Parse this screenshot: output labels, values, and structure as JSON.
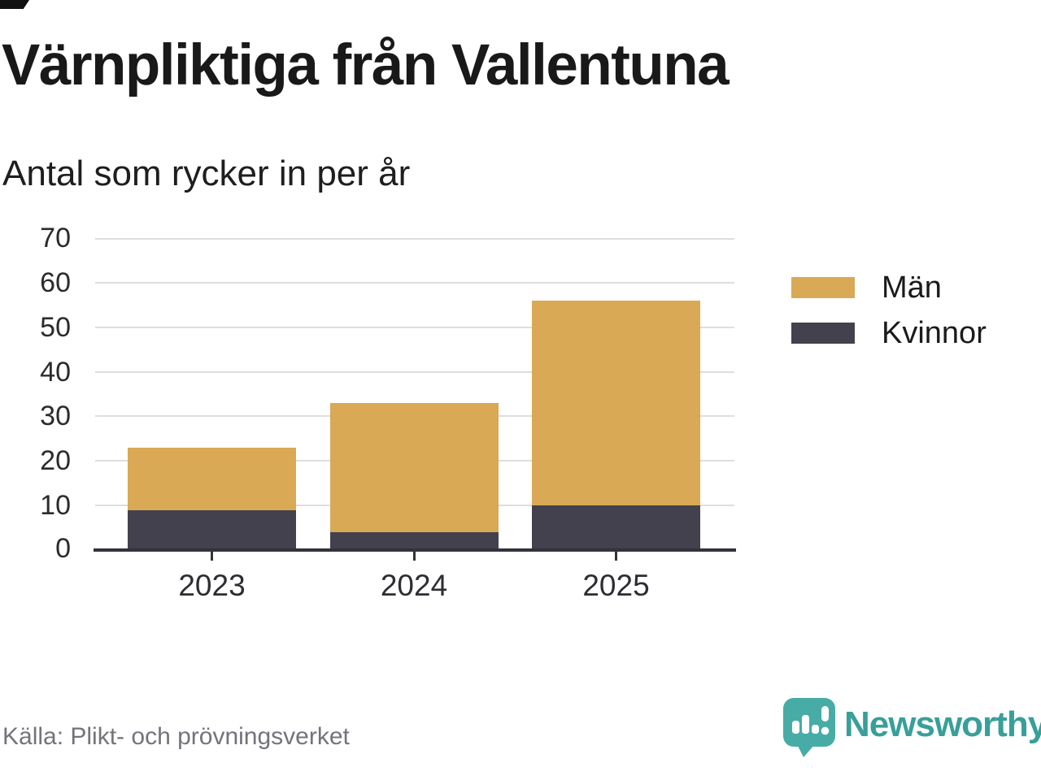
{
  "title": "Värnpliktiga från Vallentuna",
  "subtitle": "Antal som rycker in per år",
  "source": "Källa: Plikt- och prövningsverket",
  "branding": {
    "name": "Newsworthy",
    "wordmark_color": "#389f99",
    "icon_color": "#47aca6"
  },
  "legend": [
    {
      "label": "Män",
      "color": "#d9a955"
    },
    {
      "label": "Kvinnor",
      "color": "#44414e"
    }
  ],
  "colors": {
    "men": "#d9a955",
    "women": "#44414e",
    "gridline": "#dedede",
    "axis": "#35323c",
    "text": "#191919",
    "muted_text": "#74737b"
  },
  "chart_data": {
    "type": "bar",
    "stacked": true,
    "title": "Värnpliktiga från Vallentuna",
    "subtitle": "Antal som rycker in per år",
    "categories": [
      "2023",
      "2024",
      "2025"
    ],
    "series": [
      {
        "name": "Kvinnor",
        "color": "#44414e",
        "values": [
          9,
          4,
          10
        ]
      },
      {
        "name": "Män",
        "color": "#d9a955",
        "values": [
          14,
          29,
          46
        ]
      }
    ],
    "totals": [
      23,
      33,
      56
    ],
    "xlabel": "",
    "ylabel": "",
    "ylim": [
      0,
      70
    ],
    "yticks": [
      0,
      10,
      20,
      30,
      40,
      50,
      60,
      70
    ],
    "grid": true,
    "legend_position": "right"
  }
}
